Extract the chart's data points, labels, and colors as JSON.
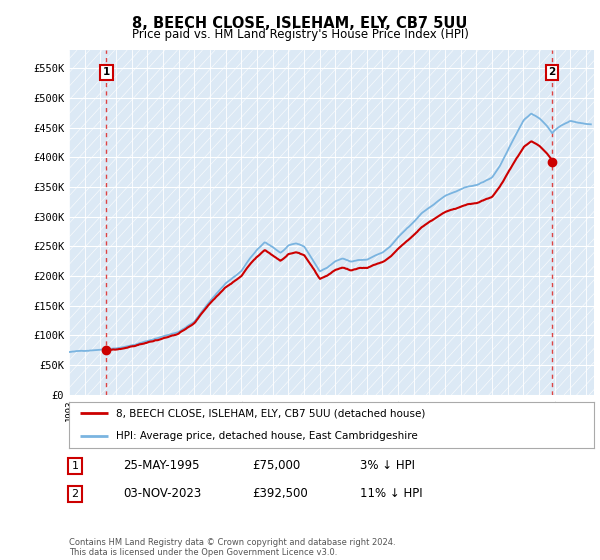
{
  "title": "8, BEECH CLOSE, ISLEHAM, ELY, CB7 5UU",
  "subtitle": "Price paid vs. HM Land Registry's House Price Index (HPI)",
  "background_color": "#ffffff",
  "plot_bg_color": "#dce9f5",
  "sale1_year": 1995.38,
  "sale1_price": 75000,
  "sale2_year": 2023.83,
  "sale2_price": 392500,
  "yticks": [
    0,
    50000,
    100000,
    150000,
    200000,
    250000,
    300000,
    350000,
    400000,
    450000,
    500000,
    550000
  ],
  "ytick_labels": [
    "£0",
    "£50K",
    "£100K",
    "£150K",
    "£200K",
    "£250K",
    "£300K",
    "£350K",
    "£400K",
    "£450K",
    "£500K",
    "£550K"
  ],
  "xmin": 1993,
  "xmax": 2026.5,
  "ymin": 0,
  "ymax": 580000,
  "legend_entry1": "8, BEECH CLOSE, ISLEHAM, ELY, CB7 5UU (detached house)",
  "legend_entry2": "HPI: Average price, detached house, East Cambridgeshire",
  "table_row1_num": "1",
  "table_row1_date": "25-MAY-1995",
  "table_row1_price": "£75,000",
  "table_row1_hpi": "3% ↓ HPI",
  "table_row2_num": "2",
  "table_row2_date": "03-NOV-2023",
  "table_row2_price": "£392,500",
  "table_row2_hpi": "11% ↓ HPI",
  "footer": "Contains HM Land Registry data © Crown copyright and database right 2024.\nThis data is licensed under the Open Government Licence v3.0.",
  "line_color_property": "#cc0000",
  "line_color_hpi": "#7ab4e0",
  "marker_color": "#cc0000",
  "dashed_line_color": "#dd4444",
  "box_color": "#cc0000",
  "hpi_noise_seed": 42,
  "hpi_noise_scale": 4000,
  "prop_noise_seed": 99,
  "prop_noise_scale": 3500
}
